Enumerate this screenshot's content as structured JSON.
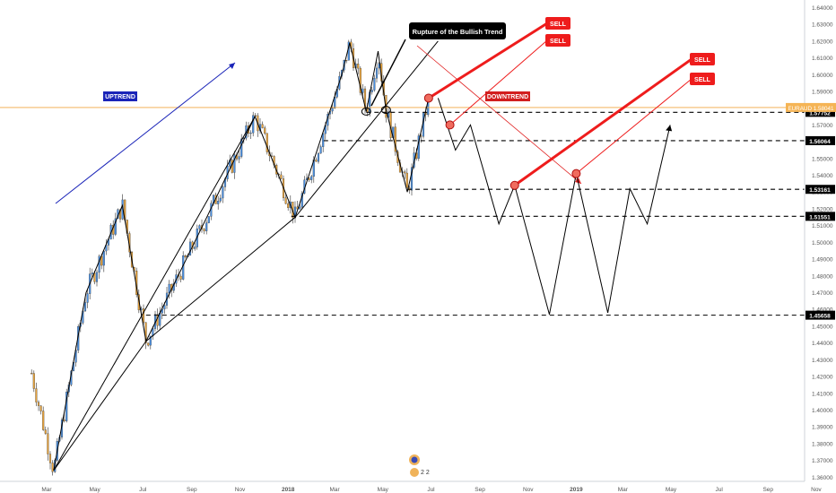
{
  "chart_data": {
    "type": "candlestick",
    "symbol": "EURAUD",
    "current_price_label": "1.58041",
    "x_ticks": [
      "Mar",
      "May",
      "Jul",
      "Sep",
      "Nov",
      "2018",
      "Mar",
      "May",
      "Jul",
      "Sep",
      "Nov",
      "2019",
      "Mar",
      "May",
      "Jul",
      "Sep",
      "Nov"
    ],
    "bold_x_ticks": [
      "2018",
      "2019"
    ],
    "y_ticks": [
      "1.64000",
      "1.63000",
      "1.62000",
      "1.61000",
      "1.60000",
      "1.59000",
      "1.58000",
      "1.57000",
      "1.56000",
      "1.55000",
      "1.54000",
      "1.53000",
      "1.52000",
      "1.51000",
      "1.50000",
      "1.49000",
      "1.48000",
      "1.47000",
      "1.46000",
      "1.45000",
      "1.44000",
      "1.43000",
      "1.42000",
      "1.41000",
      "1.40000",
      "1.39000",
      "1.38000",
      "1.37000",
      "1.36000"
    ],
    "ylim": [
      1.3575,
      1.6445
    ],
    "price_pivots_history": [
      [
        "2017-02-10",
        1.422
      ],
      [
        "2017-03-10",
        1.364
      ],
      [
        "2017-04-20",
        1.47
      ],
      [
        "2017-06-05",
        1.522
      ],
      [
        "2017-07-05",
        1.441
      ],
      [
        "2017-09-20",
        1.515
      ],
      [
        "2017-11-20",
        1.575
      ],
      [
        "2018-01-10",
        1.515
      ],
      [
        "2018-03-10",
        1.6
      ],
      [
        "2018-03-20",
        1.619
      ],
      [
        "2018-04-10",
        1.578
      ],
      [
        "2018-04-25",
        1.614
      ],
      [
        "2018-05-05",
        1.579
      ],
      [
        "2018-06-01",
        1.53
      ],
      [
        "2018-06-28",
        1.586
      ]
    ],
    "horizontal_levels": [
      "1.57752",
      "1.56064",
      "1.53161",
      "1.51551",
      "1.45658"
    ],
    "annotations": {
      "uptrend": "UPTREND",
      "downtrend": "DOWNTREND",
      "rupture": "Rupture of the Bullish Trend",
      "sell": "SELL"
    },
    "projected_path": [
      [
        "2018-07-10",
        1.586
      ],
      [
        "2018-08-01",
        1.555
      ],
      [
        "2018-08-20",
        1.57
      ],
      [
        "2018-09-25",
        1.511
      ],
      [
        "2018-10-15",
        1.534
      ],
      [
        "2018-11-28",
        1.457
      ],
      [
        "2019-01-01",
        1.541
      ],
      [
        "2019-02-10",
        1.458
      ],
      [
        "2019-03-10",
        1.532
      ],
      [
        "2019-04-01",
        1.511
      ],
      [
        "2019-04-30",
        1.57
      ]
    ],
    "sell_markers": [
      [
        "2018-06-28",
        1.586
      ],
      [
        "2018-07-25",
        1.57
      ],
      [
        "2018-10-15",
        1.534
      ],
      [
        "2019-01-01",
        1.541
      ]
    ],
    "footer_badge": "2 2"
  }
}
